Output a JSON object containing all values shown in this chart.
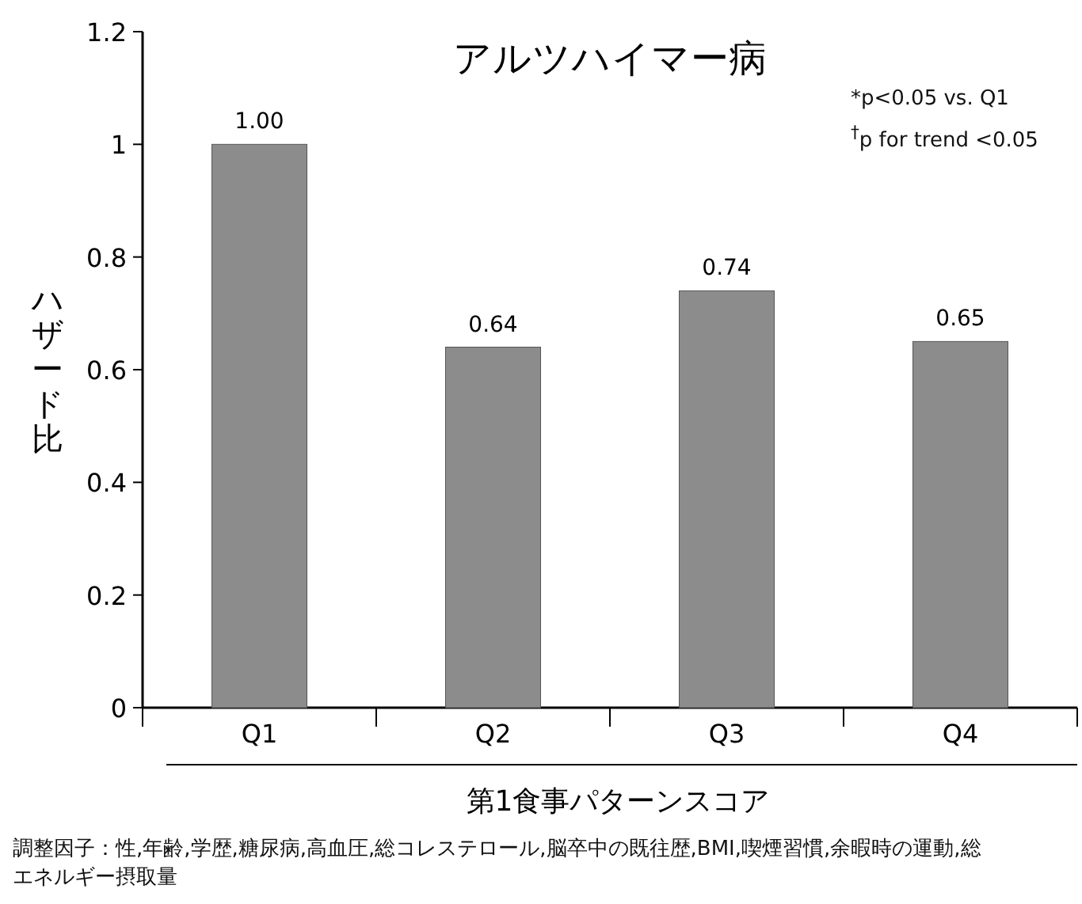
{
  "chart_data": {
    "type": "bar",
    "title": "アルツハイマー病",
    "xlabel": "第1食事パターンスコア",
    "ylabel": "ハザード比",
    "categories": [
      "Q1",
      "Q2",
      "Q3",
      "Q4"
    ],
    "values": [
      1.0,
      0.64,
      0.74,
      0.65
    ],
    "value_labels": [
      "1.00",
      "0.64",
      "0.74",
      "0.65"
    ],
    "color": "#8c8c8c",
    "ylim": [
      0,
      1.2
    ],
    "yticks": [
      0,
      0.2,
      0.4,
      0.6,
      0.8,
      1,
      1.2
    ],
    "grid": false,
    "annotations": [
      "*p<0.05 vs. Q1",
      "$^{†}$p for trend <0.05",
      "調整因子：性,年齢,学歴,糖尿病,高血圧,総コレステロール,脳卒中の既往歴,BMI,喫煙習慣,余暇時の運動,総エネルギー摂取量"
    ]
  }
}
